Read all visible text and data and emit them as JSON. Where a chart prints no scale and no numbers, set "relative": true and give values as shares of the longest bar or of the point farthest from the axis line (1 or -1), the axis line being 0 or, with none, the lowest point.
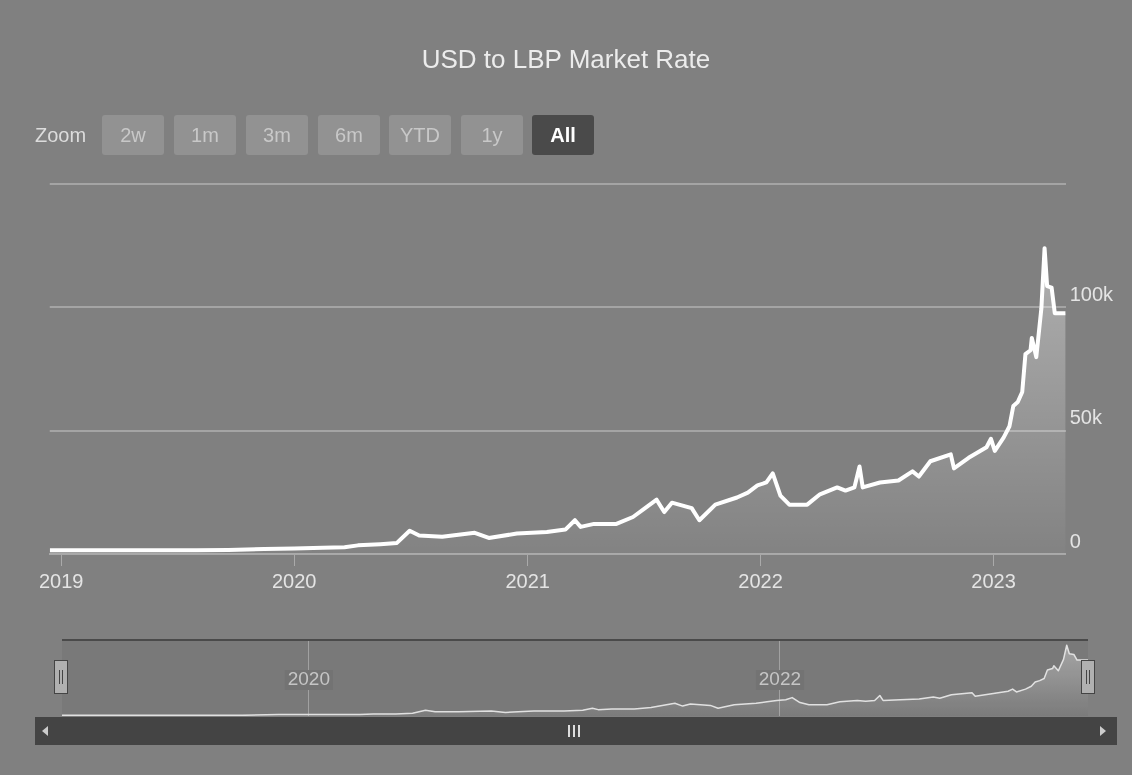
{
  "chart_data": [
    {
      "type": "area",
      "title": "USD to LBP Market Rate",
      "annotations": [
        "Zoom",
        "2w",
        "1m",
        "3m",
        "6m",
        "YTD",
        "1y",
        "All"
      ],
      "x": [
        "2018-12-14",
        "2019-08-01",
        "2019-09-20",
        "2019-11-15",
        "2020-01-01",
        "2020-02-15",
        "2020-03-20",
        "2020-04-10",
        "2020-05-15",
        "2020-06-10",
        "2020-06-30",
        "2020-07-15",
        "2020-08-20",
        "2020-10-10",
        "2020-11-01",
        "2020-12-15",
        "2021-01-31",
        "2021-03-01",
        "2021-03-16",
        "2021-03-25",
        "2021-04-15",
        "2021-05-20",
        "2021-06-15",
        "2021-07-22",
        "2021-08-03",
        "2021-08-15",
        "2021-09-15",
        "2021-09-27",
        "2021-10-22",
        "2021-11-25",
        "2021-12-12",
        "2021-12-27",
        "2022-01-10",
        "2022-01-20",
        "2022-02-01",
        "2022-02-15",
        "2022-03-15",
        "2022-04-04",
        "2022-05-01",
        "2022-05-14",
        "2022-05-28",
        "2022-06-05",
        "2022-06-10",
        "2022-07-07",
        "2022-08-05",
        "2022-08-27",
        "2022-09-06",
        "2022-09-24",
        "2022-10-26",
        "2022-10-31",
        "2022-11-23",
        "2022-12-21",
        "2022-12-28",
        "2023-01-03",
        "2023-01-17",
        "2023-01-26",
        "2023-02-01",
        "2023-02-08",
        "2023-02-15",
        "2023-02-20",
        "2023-02-28",
        "2023-03-02",
        "2023-03-09",
        "2023-03-17",
        "2023-03-22",
        "2023-03-26",
        "2023-04-02",
        "2023-04-07",
        "2023-04-24"
      ],
      "series": [
        {
          "color": "#ffffff",
          "values": [
            1500,
            1500,
            1600,
            2000,
            2200,
            2500,
            2700,
            3500,
            4000,
            4500,
            9400,
            7500,
            7000,
            8600,
            6500,
            8300,
            8900,
            9900,
            13700,
            11000,
            12200,
            12200,
            15000,
            22000,
            17000,
            20800,
            18600,
            13700,
            20000,
            22900,
            24900,
            27800,
            29000,
            32700,
            23700,
            20000,
            20000,
            24200,
            27000,
            25700,
            27000,
            35500,
            27000,
            29000,
            29800,
            33500,
            31400,
            37600,
            40400,
            34700,
            39000,
            43300,
            46700,
            41800,
            47300,
            51800,
            60000,
            61600,
            65700,
            81000,
            82600,
            87600,
            79800,
            99600,
            124000,
            108600,
            108000,
            97600,
            97600
          ]
        }
      ],
      "xlim": [
        "2018-12-14",
        "2023-04-24"
      ],
      "xticks": [
        "2019",
        "2020",
        "2021",
        "2022",
        "2023"
      ],
      "ylim": [
        0,
        150000
      ],
      "yticks": [
        0,
        {
          "value": 50000,
          "label": "50k"
        },
        {
          "value": 100000,
          "label": "100k"
        },
        {
          "value": 150000,
          "label": null
        }
      ],
      "grid": "y",
      "legend": false
    },
    {
      "type": "area",
      "relative": true,
      "x": [
        "2018-12-14",
        "2019-08-01",
        "2019-09-20",
        "2019-11-15",
        "2020-01-01",
        "2020-02-15",
        "2020-03-20",
        "2020-04-10",
        "2020-05-15",
        "2020-06-10",
        "2020-06-30",
        "2020-07-15",
        "2020-08-20",
        "2020-10-10",
        "2020-11-01",
        "2020-12-15",
        "2021-01-31",
        "2021-03-01",
        "2021-03-16",
        "2021-03-25",
        "2021-04-15",
        "2021-05-20",
        "2021-06-15",
        "2021-07-22",
        "2021-08-03",
        "2021-08-15",
        "2021-09-15",
        "2021-09-27",
        "2021-10-22",
        "2021-11-25",
        "2021-12-12",
        "2021-12-27",
        "2022-01-10",
        "2022-01-20",
        "2022-02-01",
        "2022-02-15",
        "2022-03-15",
        "2022-04-04",
        "2022-05-01",
        "2022-05-14",
        "2022-05-28",
        "2022-06-05",
        "2022-06-10",
        "2022-07-07",
        "2022-08-05",
        "2022-08-27",
        "2022-09-06",
        "2022-09-24",
        "2022-10-26",
        "2022-10-31",
        "2022-11-23",
        "2022-12-21",
        "2022-12-28",
        "2023-01-03",
        "2023-01-17",
        "2023-01-26",
        "2023-02-01",
        "2023-02-08",
        "2023-02-15",
        "2023-02-20",
        "2023-02-28",
        "2023-03-02",
        "2023-03-09",
        "2023-03-17",
        "2023-03-22",
        "2023-03-26",
        "2023-04-02",
        "2023-04-07",
        "2023-04-24"
      ],
      "series": [
        {
          "color": "#eeeeee",
          "values": [
            0.01,
            0.01,
            0.01,
            0.02,
            0.02,
            0.02,
            0.02,
            0.03,
            0.03,
            0.04,
            0.08,
            0.06,
            0.06,
            0.07,
            0.05,
            0.07,
            0.07,
            0.08,
            0.11,
            0.09,
            0.1,
            0.1,
            0.12,
            0.18,
            0.14,
            0.17,
            0.15,
            0.11,
            0.16,
            0.18,
            0.2,
            0.22,
            0.23,
            0.26,
            0.19,
            0.16,
            0.16,
            0.2,
            0.22,
            0.21,
            0.22,
            0.29,
            0.22,
            0.23,
            0.24,
            0.27,
            0.25,
            0.3,
            0.33,
            0.28,
            0.31,
            0.35,
            0.38,
            0.34,
            0.38,
            0.42,
            0.48,
            0.5,
            0.53,
            0.65,
            0.67,
            0.71,
            0.64,
            0.8,
            1,
            0.88,
            0.87,
            0.79,
            0.79
          ]
        }
      ],
      "xlim": [
        "2018-12-14",
        "2023-04-24"
      ],
      "xticks": [
        "2020",
        "2022"
      ],
      "grid": "x",
      "legend": false,
      "tick_labels": "x"
    }
  ]
}
